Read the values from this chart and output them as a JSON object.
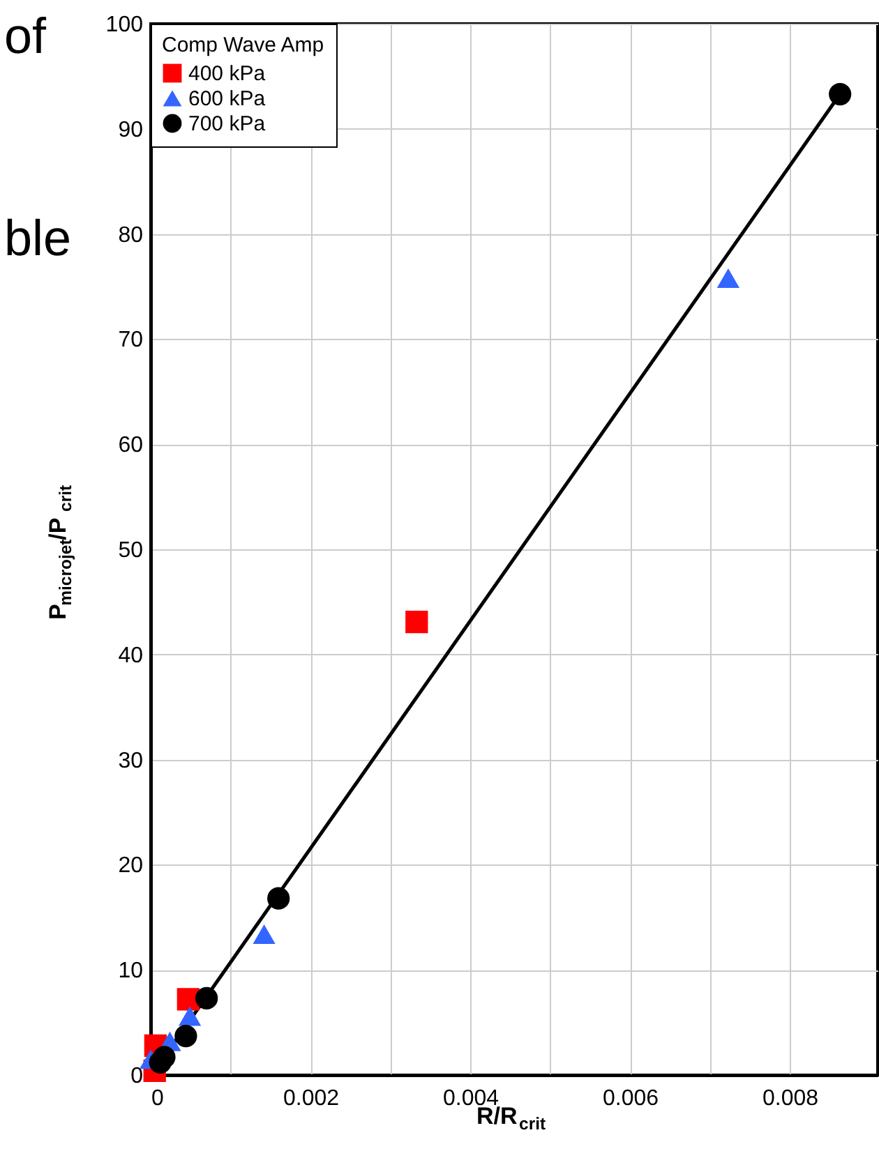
{
  "chart_data": {
    "type": "scatter",
    "xlabel": "R/R$_{crit}$",
    "ylabel": "P$_{microjet}$/P$_{crit}$",
    "legend_title": "Comp Wave Amp",
    "xlim": [
      0,
      0.0091
    ],
    "ylim": [
      0,
      100
    ],
    "xticks": [
      0,
      {
        "value": 0.001,
        "label": null
      },
      0.002,
      {
        "value": 0.003,
        "label": null
      },
      0.004,
      {
        "value": 0.005,
        "label": null
      },
      0.006,
      {
        "value": 0.007,
        "label": null
      },
      0.008
    ],
    "yticks": [
      0,
      10,
      20,
      30,
      40,
      50,
      60,
      70,
      80,
      90,
      100
    ],
    "grid": true,
    "legend": "top left",
    "series": [
      {
        "name": "400 kPa",
        "color": "#ff0000",
        "marker": "square",
        "x": [
          5e-05,
          6e-05,
          0.00047,
          0.00333
        ],
        "values": [
          0.4,
          2.8,
          7.2,
          43.1
        ]
      },
      {
        "name": "600 kPa",
        "color": "#3366ff",
        "marker": "triangle",
        "x": [
          0.0,
          0.00024,
          0.00049,
          0.00142,
          0.00723
        ],
        "values": [
          1.5,
          3.2,
          5.6,
          13.4,
          75.8
        ]
      },
      {
        "name": "700 kPa",
        "color": "#000000",
        "marker": "circle",
        "x": [
          0.00012,
          0.00017,
          0.00044,
          0.0007,
          0.0016,
          0.00863
        ],
        "values": [
          1.2,
          1.7,
          3.7,
          7.3,
          16.8,
          93.3
        ]
      },
      {
        "type": "line",
        "color": "#000000",
        "marker": "none",
        "line_style": "solid",
        "x": [
          0.00012,
          0.00863
        ],
        "values": [
          1.2,
          93.3
        ]
      }
    ],
    "annotations": [
      "of",
      "ble"
    ]
  }
}
